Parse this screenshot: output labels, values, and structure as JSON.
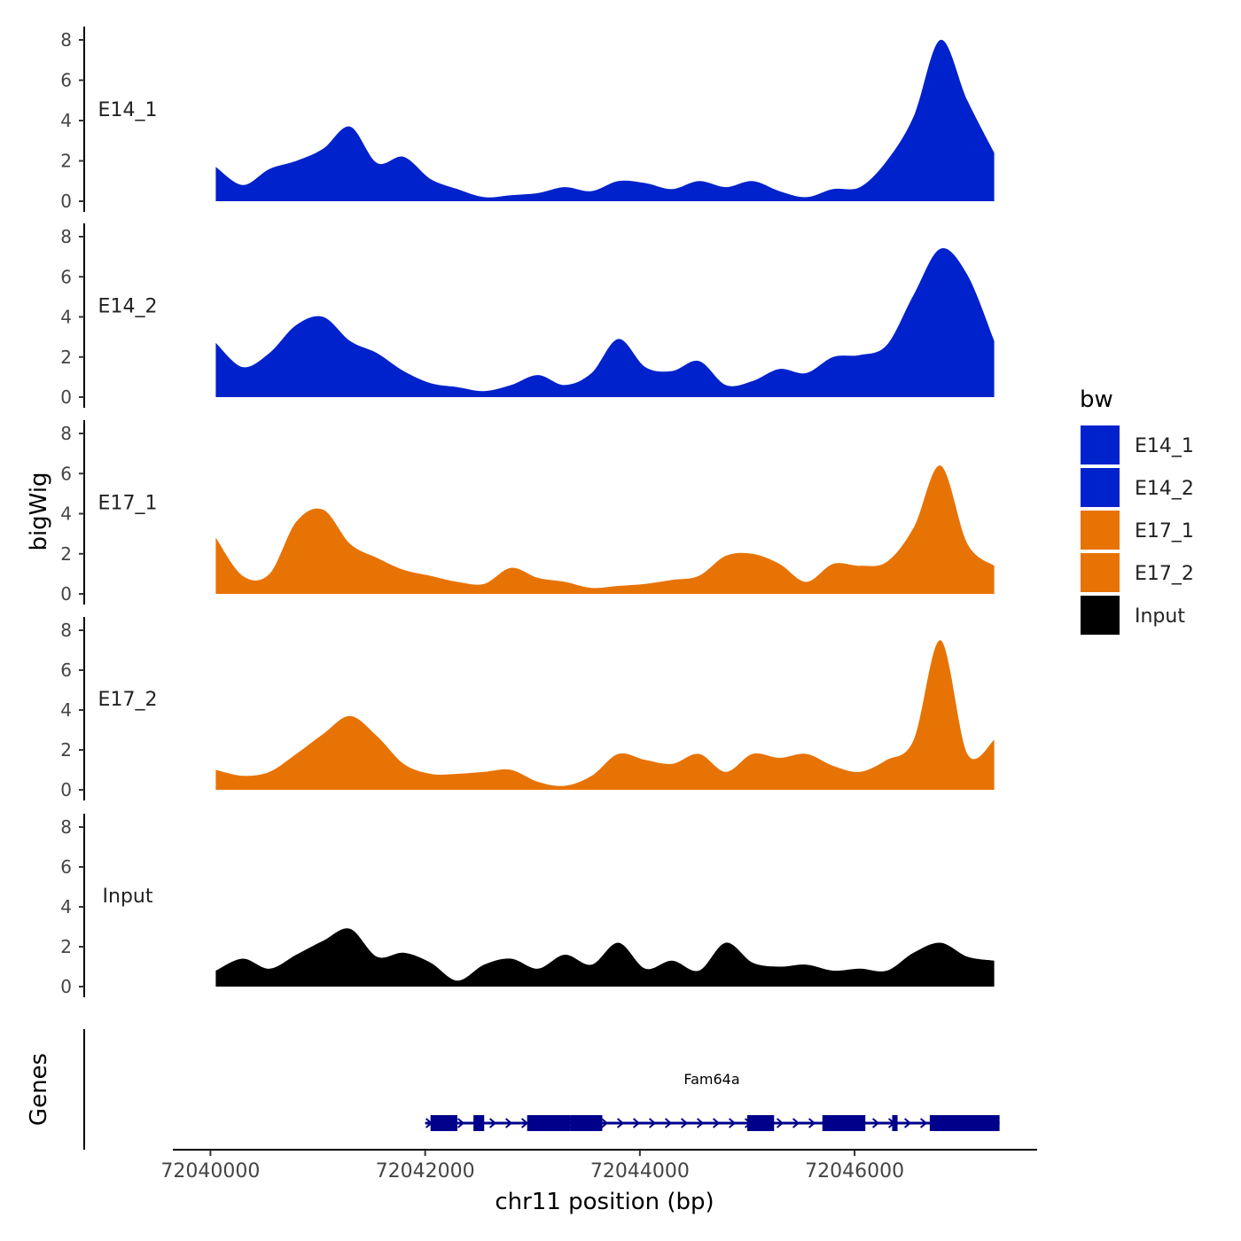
{
  "chart_data": {
    "type": "area",
    "title": "",
    "ylabel": "bigWig",
    "xlabel": "chr11 position (bp)",
    "x_ticks": [
      72040000,
      72042000,
      72044000,
      72046000
    ],
    "x_tick_labels": [
      "72040000",
      "72042000",
      "72044000",
      "72046000"
    ],
    "xlim": [
      72039650,
      72047700
    ],
    "ylim": [
      0,
      8.5
    ],
    "y_ticks": [
      0,
      2,
      4,
      6,
      8
    ],
    "y_tick_labels": [
      "0",
      "2",
      "4",
      "6",
      "8"
    ],
    "legend": {
      "title": "bw",
      "position": "right",
      "entries": [
        {
          "label": "E14_1",
          "color": "#0022CC"
        },
        {
          "label": "E14_2",
          "color": "#0022CC"
        },
        {
          "label": "E17_1",
          "color": "#E87305"
        },
        {
          "label": "E17_2",
          "color": "#E87305"
        },
        {
          "label": "Input",
          "color": "#000000"
        }
      ]
    },
    "x": [
      72040050,
      72040300,
      72040550,
      72040800,
      72041050,
      72041300,
      72041550,
      72041800,
      72042050,
      72042300,
      72042550,
      72042800,
      72043050,
      72043300,
      72043550,
      72043800,
      72044050,
      72044300,
      72044550,
      72044800,
      72045050,
      72045300,
      72045550,
      72045800,
      72046050,
      72046300,
      72046550,
      72046800,
      72047050,
      72047300
    ],
    "series": [
      {
        "name": "E14_1",
        "color": "#0022CC",
        "values": [
          1.7,
          0.8,
          1.6,
          2.0,
          2.6,
          3.7,
          1.9,
          2.2,
          1.1,
          0.6,
          0.2,
          0.3,
          0.4,
          0.7,
          0.5,
          1.0,
          0.9,
          0.6,
          1.0,
          0.7,
          1.0,
          0.5,
          0.2,
          0.6,
          0.7,
          2.0,
          4.2,
          8.0,
          5.0,
          2.4
        ]
      },
      {
        "name": "E14_2",
        "color": "#0022CC",
        "values": [
          2.7,
          1.5,
          2.2,
          3.6,
          4.0,
          2.8,
          2.2,
          1.3,
          0.7,
          0.5,
          0.3,
          0.6,
          1.1,
          0.6,
          1.2,
          2.9,
          1.5,
          1.3,
          1.8,
          0.6,
          0.8,
          1.4,
          1.2,
          2.0,
          2.1,
          2.6,
          5.1,
          7.4,
          6.1,
          2.8
        ]
      },
      {
        "name": "E17_1",
        "color": "#E87305",
        "values": [
          2.8,
          0.9,
          1.0,
          3.6,
          4.2,
          2.5,
          1.8,
          1.2,
          0.9,
          0.6,
          0.5,
          1.3,
          0.8,
          0.6,
          0.3,
          0.4,
          0.5,
          0.7,
          0.9,
          1.9,
          2.0,
          1.5,
          0.6,
          1.5,
          1.4,
          1.6,
          3.3,
          6.4,
          2.5,
          1.4
        ]
      },
      {
        "name": "E17_2",
        "color": "#E87305",
        "values": [
          1.0,
          0.7,
          0.9,
          1.8,
          2.8,
          3.7,
          2.7,
          1.3,
          0.8,
          0.8,
          0.9,
          1.0,
          0.4,
          0.2,
          0.7,
          1.8,
          1.5,
          1.3,
          1.8,
          0.9,
          1.8,
          1.6,
          1.8,
          1.2,
          0.9,
          1.5,
          2.5,
          7.5,
          1.8,
          2.5
        ]
      },
      {
        "name": "Input",
        "color": "#000000",
        "values": [
          0.8,
          1.4,
          0.9,
          1.6,
          2.3,
          2.9,
          1.5,
          1.7,
          1.2,
          0.3,
          1.1,
          1.4,
          0.9,
          1.6,
          1.1,
          2.2,
          0.9,
          1.3,
          0.8,
          2.2,
          1.2,
          1.0,
          1.1,
          0.8,
          0.9,
          0.8,
          1.7,
          2.2,
          1.5,
          1.3
        ]
      }
    ],
    "genes_track": {
      "label": "Genes",
      "gene_name": "Fam64a",
      "gene_start": 72042000,
      "gene_end": 72047350,
      "strand": "+",
      "color": "#00008B",
      "exons": [
        [
          72042050,
          72042300
        ],
        [
          72042450,
          72042550
        ],
        [
          72042950,
          72043350
        ],
        [
          72043350,
          72043650
        ],
        [
          72045000,
          72045250
        ],
        [
          72045700,
          72046100
        ],
        [
          72046350,
          72046400
        ],
        [
          72046700,
          72047350
        ]
      ]
    }
  }
}
